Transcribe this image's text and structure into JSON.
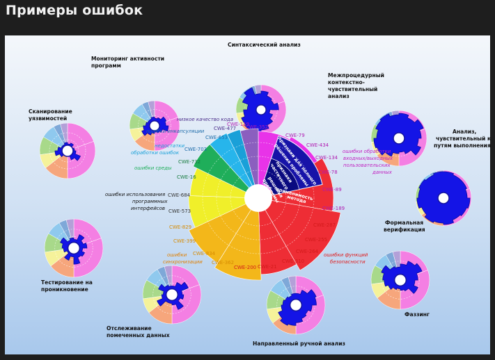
{
  "title": "Примеры ошибок",
  "colors": {
    "pink": "#f47fe3",
    "magenta": "#e833e8",
    "red": "#ee2d35",
    "orange": "#f3b71a",
    "yellow": "#f0ef2a",
    "green": "#1fae5a",
    "lightgreen": "#5cc253",
    "teal": "#1aa0d8",
    "sky": "#27b5eb",
    "purple": "#8b5fbf",
    "navy": "#1713a8",
    "blob": "#1414e6"
  },
  "center": {
    "cwe_labels": {
      "cwe_119": "CWE-119",
      "cwe_352": "CWE-352",
      "cwe_79": "CWE-79",
      "cwe_434": "CWE-434",
      "cwe_134": "CWE-134",
      "cwe_78": "CWE-78",
      "cwe_89": "CWE-89",
      "cwe_189": "CWE-189",
      "cwe_287": "CWE-287",
      "cwe_255": "CWE-255",
      "cwe_264": "CWE-264",
      "cwe_310": "CWE-310",
      "cwe_21": "CWE-21",
      "cwe_200": "CWE-200",
      "cwe_362": "CWE-362",
      "cwe_834": "CWE-834",
      "cwe_399": "CWE-399",
      "cwe_829": "CWE-829",
      "cwe_573": "CWE-573",
      "cwe_684": "CWE-684",
      "cwe_16": "CWE-16",
      "cwe_732": "CWE-732",
      "cwe_703": "CWE-703",
      "cwe_653": "CWE-653",
      "cwe_477": "CWE-477"
    },
    "categories": {
      "low_quality": "низкое качество кода",
      "encapsulation": "ошибки инкапсуляции",
      "error_handling_1": "недостатки",
      "error_handling_2": "обработки ошибок",
      "environment": "ошибки среды",
      "api_1": "ошибки использования",
      "api_2": "программных",
      "api_3": "интерфейсов",
      "sync_1": "ошибки",
      "sync_2": "синхронизации",
      "security_1": "ошибки функций",
      "security_2": "безопасности",
      "io_1": "ошибки обработки",
      "io_2": "входных/выходных",
      "io_3": "пользовательских",
      "io_4": "данных"
    },
    "dark_labels": {
      "l1": "признаки для полного",
      "l2": "решения проблемы",
      "l3": "признаки",
      "l4": "частичного",
      "l5": "решения",
      "l6": "проблемы",
      "l7": "применимость",
      "l8": "метода"
    }
  },
  "methods": {
    "syntax": "Синтаксический анализ",
    "monitoring_1": "Мониторинг активности",
    "monitoring_2": "программ",
    "interproc_1": "Межпроцедурный",
    "interproc_2": "контекстно-",
    "interproc_3": "чувствительный",
    "interproc_4": "анализ",
    "path_1": "Анализ,",
    "path_2": "чувствительный к",
    "path_3": "путям выполнения",
    "vuln_1": "Сканирование",
    "vuln_2": "уязвимостей",
    "formal_1": "Формальная",
    "formal_2": "верификация",
    "pentest_1": "Тестирование на",
    "pentest_2": "проникновение",
    "fuzzing": "Фаззинг",
    "taint_1": "Отслеживание",
    "taint_2": "помеченных данных",
    "manual": "Направленный ручной анализ"
  }
}
